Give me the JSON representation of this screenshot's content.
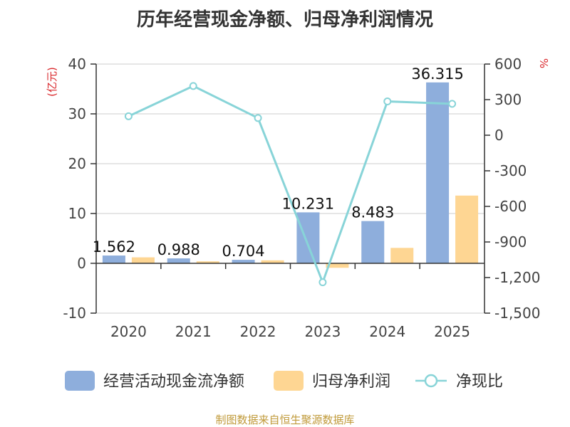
{
  "title": "历年经营现金净额、归母净利润情况",
  "source": "制图数据来自恒生聚源数据库",
  "colors": {
    "operating_cash_flow": "#8eaedc",
    "net_profit": "#fed693",
    "ratio_line": "#88d4d8",
    "unit_text": "#d9262a",
    "source_text": "#c09a3a",
    "grid": "#cccccc",
    "axis": "#333333"
  },
  "chart_data": {
    "type": "bar",
    "title": "历年经营现金净额、归母净利润情况",
    "categories": [
      "2020",
      "2021",
      "2022",
      "2023",
      "2024",
      "2025"
    ],
    "left_axis": {
      "unit": "(亿元)",
      "ylim": [
        -10,
        40
      ],
      "ticks": [
        "-10",
        "0",
        "10",
        "20",
        "30",
        "40"
      ]
    },
    "right_axis": {
      "unit": "%",
      "ylim": [
        -1500,
        600
      ],
      "ticks": [
        "-1,500",
        "-1,200",
        "-900",
        "-600",
        "-300",
        "0",
        "300",
        "600"
      ]
    },
    "series": [
      {
        "name": "经营活动现金流净额",
        "type": "bar",
        "axis": "left",
        "values": [
          1.562,
          0.988,
          0.704,
          10.231,
          8.483,
          36.315
        ],
        "labels": [
          "1.562",
          "0.988",
          "0.704",
          "10.231",
          "8.483",
          "36.315"
        ]
      },
      {
        "name": "归母净利润",
        "type": "bar",
        "axis": "left",
        "values": [
          1.2,
          0.4,
          0.6,
          -0.9,
          3.1,
          13.6
        ]
      },
      {
        "name": "净现比",
        "type": "line",
        "axis": "right",
        "values": [
          160,
          415,
          145,
          -1240,
          285,
          265
        ]
      }
    ],
    "grid": true,
    "legend": "bottom"
  }
}
